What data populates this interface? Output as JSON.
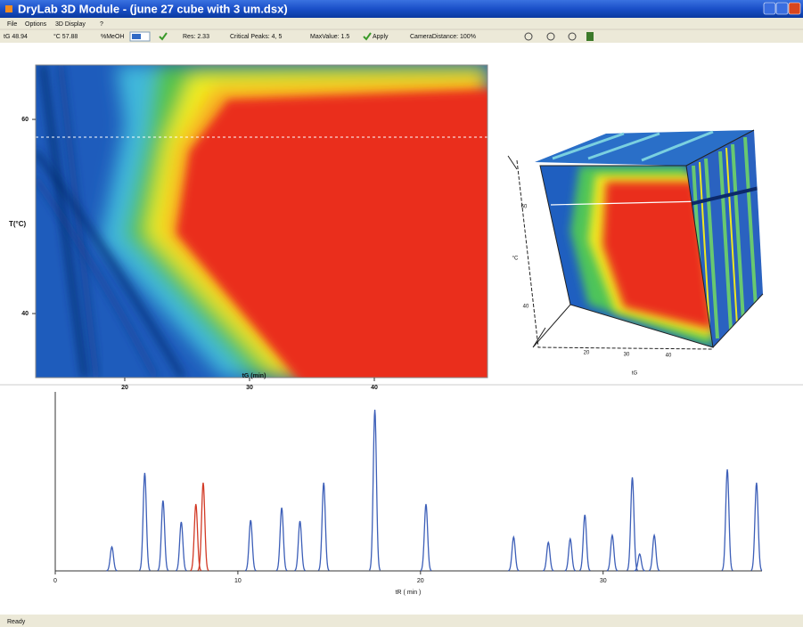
{
  "window": {
    "title": "DryLab 3D Module - (june 27 cube with 3 um.dsx)"
  },
  "menu": [
    "File",
    "Options",
    "3D Display",
    "?"
  ],
  "toolbar": [
    "tG  48.94",
    "°C  57.88",
    "%MeOH",
    "Res: 2.33",
    "Critical Peaks: 4, 5",
    "MaxValue: 1.5",
    "Apply",
    "CameraDistance: 100%"
  ],
  "heatmap": {
    "y_label": "T(°C)",
    "x_label": "tG (min)",
    "xlim": [
      12.86,
      49.07
    ],
    "ylim": [
      33.4,
      65.6
    ],
    "xticks": [
      20,
      30,
      40
    ],
    "yticks": [
      60,
      40
    ]
  },
  "cube": {
    "labels": [
      "60",
      "°C",
      "40",
      "20",
      "30",
      "40",
      "tG"
    ]
  },
  "chart_data": {
    "type": "chromatogram",
    "x_label": "tR ( min )",
    "xlim": [
      0,
      38.7
    ],
    "ylim": [
      0,
      200
    ],
    "xticks": [
      0,
      10,
      20,
      30
    ],
    "series": [
      {
        "color": "#3d5fb8",
        "tR": [
          3.1,
          4.9,
          5.9,
          6.9,
          10.7,
          12.4,
          13.4,
          14.7,
          17.5,
          20.3,
          25.1,
          27.0,
          28.2,
          29.0,
          30.5,
          31.6,
          32.0,
          32.8,
          36.8,
          38.4
        ],
        "values": [
          27,
          110,
          79,
          55,
          57,
          71,
          56,
          99,
          181,
          75,
          38,
          32,
          36,
          63,
          40,
          105,
          19,
          40,
          114,
          99
        ]
      },
      {
        "color": "#d23a26",
        "tR": [
          7.7,
          8.1
        ],
        "values": [
          75,
          99
        ]
      }
    ]
  },
  "status": "Ready"
}
